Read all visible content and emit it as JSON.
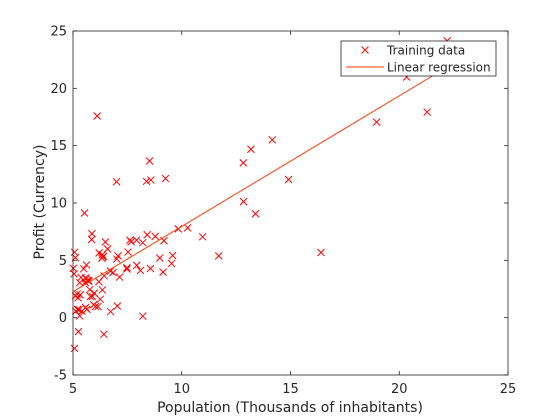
{
  "chart_data": {
    "type": "scatter",
    "xlabel": "Population (Thousands of inhabitants)",
    "ylabel": "Profit (Currency)",
    "xlim": [
      5,
      25
    ],
    "ylim": [
      -5,
      25
    ],
    "xticks": [
      "5",
      "10",
      "15",
      "20",
      "25"
    ],
    "yticks": [
      "-5",
      "0",
      "5",
      "10",
      "15",
      "20",
      "25"
    ],
    "grid": false,
    "legend_position": "top-right",
    "series": [
      {
        "name": "Training data",
        "kind": "markers",
        "marker": "x",
        "color": "#ff0000",
        "points": [
          [
            6.11,
            17.59
          ],
          [
            5.53,
            9.13
          ],
          [
            8.52,
            13.66
          ],
          [
            7.0,
            11.85
          ],
          [
            5.86,
            6.82
          ],
          [
            8.38,
            11.89
          ],
          [
            7.48,
            4.35
          ],
          [
            8.58,
            12.0
          ],
          [
            6.49,
            6.6
          ],
          [
            5.05,
            3.82
          ],
          [
            5.71,
            3.25
          ],
          [
            14.16,
            15.51
          ],
          [
            5.73,
            3.16
          ],
          [
            8.41,
            7.23
          ],
          [
            5.64,
            0.72
          ],
          [
            5.37,
            3.51
          ],
          [
            6.37,
            5.3
          ],
          [
            5.13,
            0.56
          ],
          [
            6.43,
            3.65
          ],
          [
            7.07,
            5.39
          ],
          [
            6.19,
            3.13
          ],
          [
            20.27,
            21.77
          ],
          [
            5.49,
            4.26
          ],
          [
            6.33,
            5.19
          ],
          [
            5.56,
            3.08
          ],
          [
            18.95,
            22.64
          ],
          [
            12.83,
            13.5
          ],
          [
            10.96,
            7.05
          ],
          [
            13.18,
            14.69
          ],
          [
            22.2,
            24.15
          ],
          [
            5.25,
            -1.22
          ],
          [
            6.59,
            5.99
          ],
          [
            9.25,
            12.13
          ],
          [
            5.89,
            1.85
          ],
          [
            8.21,
            6.54
          ],
          [
            7.93,
            4.56
          ],
          [
            8.1,
            4.12
          ],
          [
            5.61,
            3.39
          ],
          [
            12.84,
            10.12
          ],
          [
            6.35,
            5.5
          ],
          [
            5.41,
            0.56
          ],
          [
            6.84,
            3.93
          ],
          [
            5.67,
            3.25
          ],
          [
            9.18,
            6.71
          ],
          [
            5.11,
            1.9
          ],
          [
            20.34,
            20.99
          ],
          [
            7.01,
            5.11
          ],
          [
            11.7,
            5.39
          ],
          [
            5.01,
            4.3
          ],
          [
            5.57,
            3.46
          ],
          [
            6.42,
            -1.45
          ],
          [
            7.48,
            4.24
          ],
          [
            16.4,
            5.68
          ],
          [
            21.28,
            17.93
          ],
          [
            13.39,
            9.06
          ],
          [
            5.98,
            2.14
          ],
          [
            5.31,
            3.05
          ],
          [
            5.95,
            1.13
          ],
          [
            8.21,
            0.13
          ],
          [
            5.31,
            0.16
          ],
          [
            8.56,
            4.29
          ],
          [
            6.2,
            5.65
          ],
          [
            7.62,
            6.76
          ],
          [
            5.07,
            -2.68
          ],
          [
            5.8,
            1.84
          ],
          [
            8.99,
            5.2
          ],
          [
            5.33,
            1.99
          ],
          [
            5.77,
            2.45
          ],
          [
            6.03,
            0.97
          ],
          [
            5.21,
            0.71
          ],
          [
            5.11,
            5.23
          ],
          [
            5.28,
            0.7
          ],
          [
            9.58,
            5.42
          ],
          [
            5.19,
            2.06
          ],
          [
            6.15,
            0.97
          ],
          [
            9.14,
            3.97
          ],
          [
            7.92,
            6.76
          ],
          [
            5.87,
            7.32
          ],
          [
            6.4,
            5.34
          ],
          [
            5.62,
            4.6
          ],
          [
            7.53,
            5.72
          ],
          [
            6.35,
            2.42
          ],
          [
            9.53,
            4.73
          ],
          [
            5.23,
            1.74
          ],
          [
            7.14,
            3.54
          ],
          [
            5.58,
            0.89
          ],
          [
            6.73,
            0.52
          ],
          [
            6.25,
            1.6
          ],
          [
            6.72,
            4.07
          ],
          [
            7.67,
            6.62
          ],
          [
            8.78,
            7.09
          ],
          [
            9.84,
            7.74
          ],
          [
            10.27,
            7.83
          ],
          [
            7.04,
            1.02
          ],
          [
            14.91,
            12.05
          ],
          [
            18.96,
            17.05
          ],
          [
            5.07,
            5.71
          ]
        ]
      },
      {
        "name": "Linear regression",
        "kind": "line",
        "color": "#ff3a00",
        "points": [
          [
            5.03,
            2.3
          ],
          [
            22.2,
            21.85
          ]
        ]
      }
    ]
  }
}
